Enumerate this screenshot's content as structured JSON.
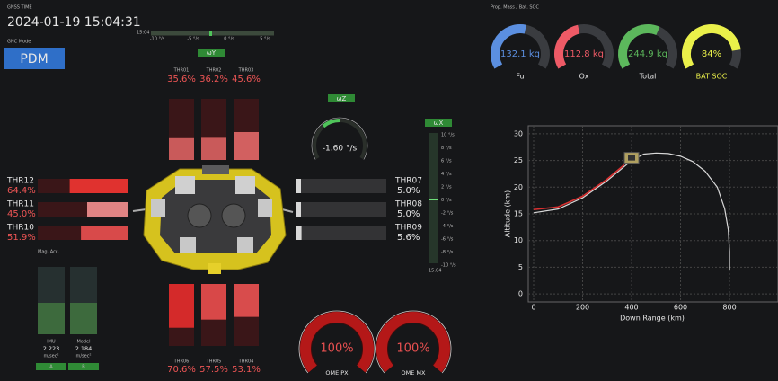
{
  "header": {
    "time_label": "GNSS TIME",
    "time": "2024-01-19 15:04:31",
    "mode_label": "GNC Mode",
    "mode": "PDM"
  },
  "omega_y": {
    "label": "ωY",
    "time": "15:04",
    "ticks": [
      "-10 °/s",
      "-5 °/s",
      "0 °/s",
      "5 °/s"
    ]
  },
  "omega_z": {
    "label": "ωZ",
    "value": "-1.60 °/s"
  },
  "omega_x": {
    "label": "ωX",
    "time": "15:04",
    "ticks": [
      "10 °/s",
      "8 °/s",
      "6 °/s",
      "4 °/s",
      "2 °/s",
      "0 °/s",
      "-2 °/s",
      "-4 °/s",
      "-6 °/s",
      "-8 °/s",
      "-10 °/s"
    ]
  },
  "thrusters": {
    "top": [
      {
        "name": "THR01",
        "value": 35.6,
        "label": "35.6%",
        "color": "#c95a5a"
      },
      {
        "name": "THR02",
        "value": 36.2,
        "label": "36.2%",
        "color": "#c95a5a"
      },
      {
        "name": "THR03",
        "value": 45.6,
        "label": "45.6%",
        "color": "#d26060"
      }
    ],
    "left": [
      {
        "name": "THR12",
        "value": 64.4,
        "label": "64.4%",
        "color": "#e0322f"
      },
      {
        "name": "THR11",
        "value": 45.0,
        "label": "45.0%",
        "color": "#e08484"
      },
      {
        "name": "THR10",
        "value": 51.9,
        "label": "51.9%",
        "color": "#d84a4a"
      }
    ],
    "right": [
      {
        "name": "THR07",
        "value": 5.0,
        "label": "5.0%",
        "color": "#d8d8d8"
      },
      {
        "name": "THR08",
        "value": 5.0,
        "label": "5.0%",
        "color": "#d8d8d8"
      },
      {
        "name": "THR09",
        "value": 5.6,
        "label": "5.6%",
        "color": "#d8d8d8"
      }
    ],
    "bottom": [
      {
        "name": "THR06",
        "value": 70.6,
        "label": "70.6%",
        "color": "#d42a2a"
      },
      {
        "name": "THR05",
        "value": 57.5,
        "label": "57.5%",
        "color": "#d84848"
      },
      {
        "name": "THR04",
        "value": 53.1,
        "label": "53.1%",
        "color": "#d84c4c"
      }
    ]
  },
  "mag_acc": {
    "title": "Mag. Acc.",
    "items": [
      {
        "name": "IMU",
        "value": "2.223",
        "unit": "m/sec²",
        "button": "A"
      },
      {
        "name": "Model",
        "value": "2.184",
        "unit": "m/sec²",
        "button": "B"
      }
    ]
  },
  "prop": {
    "title": "Prop. Mass / Bat. SOC",
    "gauges": [
      {
        "name": "Fu",
        "label": "132.1 kg",
        "color": "#5b8fe0"
      },
      {
        "name": "Ox",
        "label": "112.8 kg",
        "color": "#ee5a66"
      },
      {
        "name": "Total",
        "label": "244.9 kg",
        "color": "#5cb85c"
      },
      {
        "name": "BAT SOC",
        "label": "84%",
        "value": 84,
        "color": "#eaf04a"
      }
    ]
  },
  "ome": [
    {
      "name": "OME PX",
      "label": "100%",
      "value": 100
    },
    {
      "name": "OME MX",
      "label": "100%",
      "value": 100
    }
  ],
  "chart_data": {
    "type": "line",
    "x_label": "Down Range (km)",
    "y_label": "Altitude (km)",
    "xlim": [
      -22,
      998
    ],
    "ylim": [
      -1.5,
      31.5
    ],
    "xticks": [
      0,
      200,
      400,
      600,
      800
    ],
    "yticks": [
      0,
      5,
      10,
      15,
      20,
      25,
      30
    ],
    "grid": true,
    "series": [
      {
        "color": "#d8d8d8",
        "x": [
          0,
          100,
          200,
          300,
          400,
          450,
          500,
          550,
          600,
          650,
          700,
          750,
          780,
          795,
          800,
          800
        ],
        "values": [
          15.2,
          15.9,
          18.0,
          21.2,
          25.0,
          26.2,
          26.4,
          26.3,
          25.8,
          24.8,
          23.0,
          20.0,
          16.0,
          12.0,
          8.0,
          4.5
        ]
      },
      {
        "color": "#d93030",
        "x": [
          0,
          100,
          200,
          300,
          370
        ],
        "values": [
          15.8,
          16.3,
          18.3,
          21.5,
          24.2
        ]
      }
    ]
  }
}
